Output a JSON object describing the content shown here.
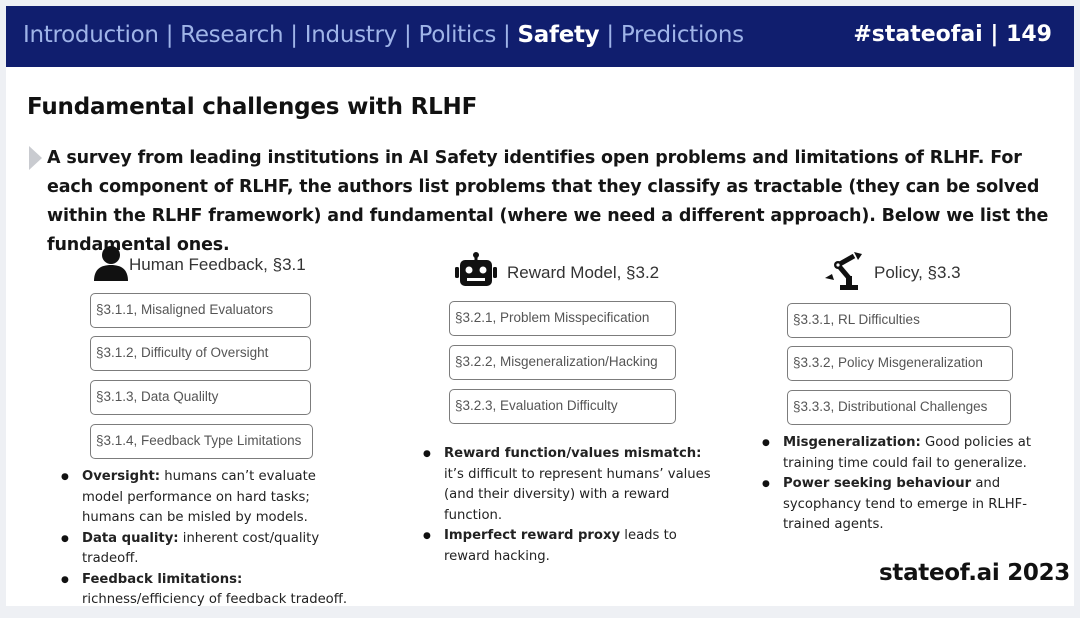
{
  "nav": {
    "sections": [
      {
        "label": "Introduction",
        "active": false
      },
      {
        "label": "Research",
        "active": false
      },
      {
        "label": "Industry",
        "active": false
      },
      {
        "label": "Politics",
        "active": false
      },
      {
        "label": "Safety",
        "active": true
      },
      {
        "label": "Predictions",
        "active": false
      }
    ],
    "separator": "|",
    "hashtag_page": "#stateofai | 149",
    "bar_color": "#101e6e"
  },
  "title": "Fundamental challenges with RLHF",
  "intro": "A survey from leading institutions in AI Safety identifies open problems and limitations of RLHF. For each component of RLHF, the authors list problems that they classify as tractable (they can be solved within the RLHF framework) and fundamental (where we need a different approach). Below we list the fundamental ones.",
  "columns": [
    {
      "heading": "Human Feedback, §3.1",
      "icon": "person-icon",
      "items": [
        "§3.1.1, Misaligned Evaluators",
        "§3.1.2, Difficulty of Oversight",
        "§3.1.3, Data Qualilty",
        "§3.1.4, Feedback Type Limitations"
      ],
      "bullets": [
        {
          "bold": "Oversight:",
          "text": " humans can’t evaluate model performance on hard tasks; humans can be misled by models."
        },
        {
          "bold": "Data quality:",
          "text": " inherent cost/quality tradeoff."
        },
        {
          "bold": "Feedback limitations:",
          "text": " richness/efficiency of feedback tradeoff."
        }
      ]
    },
    {
      "heading": "Reward Model, §3.2",
      "icon": "robot-icon",
      "items": [
        "§3.2.1, Problem Misspecification",
        "§3.2.2, Misgeneralization/Hacking",
        "§3.2.3, Evaluation Difficulty"
      ],
      "bullets": [
        {
          "bold": "Reward function/values mismatch:",
          "text": " it’s difficult to represent humans’ values (and their diversity) with a reward function."
        },
        {
          "bold": "Imperfect reward proxy",
          "text": " leads to reward hacking."
        }
      ]
    },
    {
      "heading": "Policy, §3.3",
      "icon": "robot-arm-icon",
      "items": [
        "§3.3.1, RL Difficulties",
        "§3.3.2, Policy Misgeneralization",
        "§3.3.3, Distributional Challenges"
      ],
      "bullets": [
        {
          "bold": "Misgeneralization:",
          "text": " Good policies at training time could fail to generalize."
        },
        {
          "bold": "Power seeking behaviour",
          "text": " and sycophancy tend to emerge in RLHF-trained agents."
        }
      ]
    }
  ],
  "footer": "stateof.ai 2023"
}
